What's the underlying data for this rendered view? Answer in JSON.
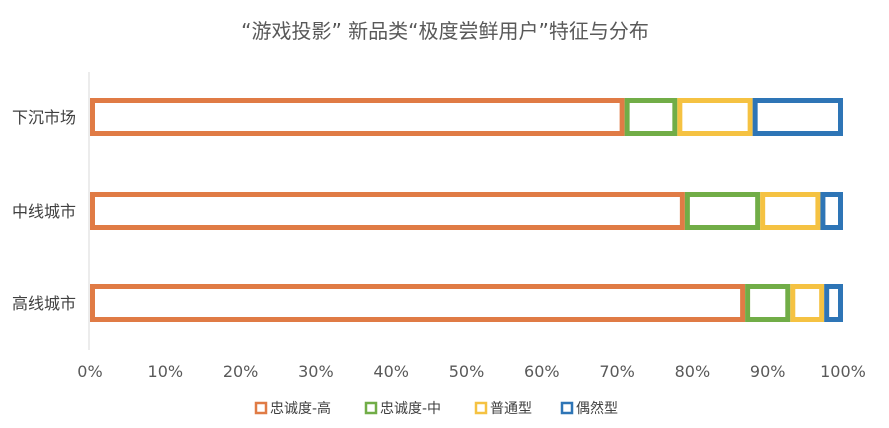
{
  "chart_data": {
    "type": "bar",
    "orientation": "horizontal",
    "stacked": true,
    "title": "“游戏投影” 新品类“极度尝鲜用户”特征与分布",
    "categories": [
      "下沉市场",
      "中线城市",
      "高线城市"
    ],
    "series": [
      {
        "name": "忠诚度-高",
        "color": "#E07B45",
        "values": [
          71,
          79,
          87
        ]
      },
      {
        "name": "忠诚度-中",
        "color": "#71AD47",
        "values": [
          7,
          10,
          6
        ]
      },
      {
        "name": "普通型",
        "color": "#F5C242",
        "values": [
          10,
          8,
          4.5
        ]
      },
      {
        "name": "偶然型",
        "color": "#2E75B6",
        "values": [
          12,
          3,
          2.5
        ]
      }
    ],
    "xlim": [
      0,
      100
    ],
    "xticks": [
      "0%",
      "10%",
      "20%",
      "30%",
      "40%",
      "50%",
      "60%",
      "70%",
      "80%",
      "90%",
      "100%"
    ],
    "grid": false,
    "legend": "bottom",
    "bar_fill": "#FFFFFF"
  }
}
